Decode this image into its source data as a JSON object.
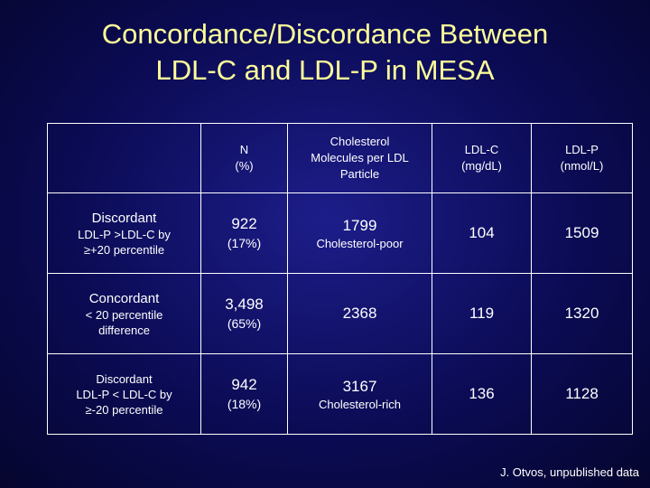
{
  "title_line1": "Concordance/Discordance Between",
  "title_line2": "LDL-C and LDL-P in MESA",
  "table": {
    "headers": {
      "n_line1": "N",
      "n_line2": "(%)",
      "chol_line1": "Cholesterol",
      "chol_line2": "Molecules per LDL",
      "chol_line3": "Particle",
      "ldlc_line1": "LDL-C",
      "ldlc_line2": "(mg/dL)",
      "ldlp_line1": "LDL-P",
      "ldlp_line2": "(nmol/L)"
    },
    "rows": [
      {
        "label": "Discordant",
        "sub1": "LDL-P >LDL-C by",
        "sub2": "≥+20 percentile",
        "n": "922",
        "pct": "(17%)",
        "chol": "1799",
        "chol_note": "Cholesterol-poor",
        "ldlc": "104",
        "ldlp": "1509"
      },
      {
        "label": "Concordant",
        "sub1": "< 20 percentile",
        "sub2": "difference",
        "n": "3,498",
        "pct": "(65%)",
        "chol": "2368",
        "chol_note": "",
        "ldlc": "119",
        "ldlp": "1320"
      },
      {
        "label": "Discordant",
        "sub1": "LDL-P < LDL-C by",
        "sub2": "≥-20 percentile",
        "n": "942",
        "pct": "(18%)",
        "chol": "3167",
        "chol_note": "Cholesterol-rich",
        "ldlc": "136",
        "ldlp": "1128"
      }
    ]
  },
  "footer": "J. Otvos, unpublished data",
  "colors": {
    "title": "#ffff99",
    "background": "#0b0b55",
    "text": "#ffffff"
  }
}
